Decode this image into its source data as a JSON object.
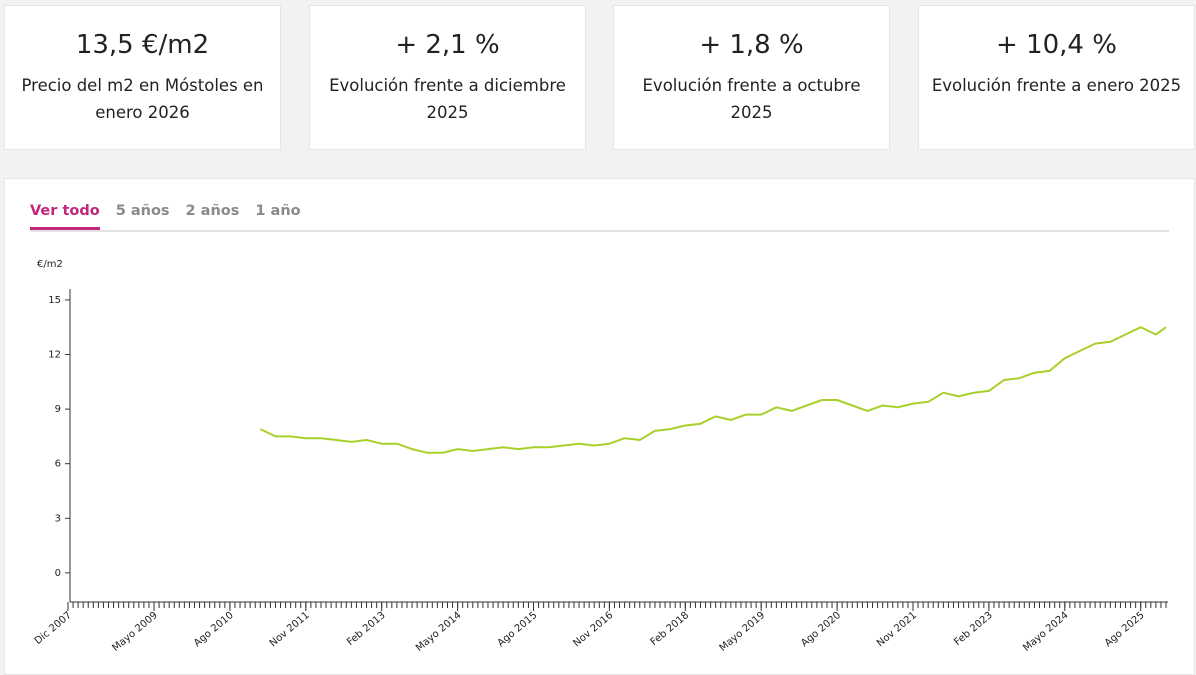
{
  "cards": [
    {
      "value": "13,5 €/m2",
      "label": "Precio del m2 en Móstoles en enero 2026"
    },
    {
      "value": "+ 2,1 %",
      "label": "Evolución frente a diciembre 2025"
    },
    {
      "value": "+ 1,8 %",
      "label": "Evolución frente a octubre 2025"
    },
    {
      "value": "+ 10,4 %",
      "label": "Evolución frente a enero 2025"
    }
  ],
  "tabs": [
    "Ver todo",
    "5 años",
    "2 años",
    "1 año"
  ],
  "chart_data": {
    "type": "line",
    "y_label": "€/m2",
    "color": "#a9cf2b",
    "x": [
      "2011-02",
      "2011-05",
      "2011-08",
      "2011-11",
      "2012-02",
      "2012-05",
      "2012-08",
      "2012-11",
      "2013-02",
      "2013-05",
      "2013-08",
      "2013-11",
      "2014-02",
      "2014-05",
      "2014-08",
      "2014-11",
      "2015-02",
      "2015-05",
      "2015-08",
      "2015-11",
      "2016-02",
      "2016-05",
      "2016-08",
      "2016-11",
      "2017-02",
      "2017-05",
      "2017-08",
      "2017-11",
      "2018-02",
      "2018-05",
      "2018-08",
      "2018-11",
      "2019-02",
      "2019-05",
      "2019-08",
      "2019-11",
      "2020-02",
      "2020-05",
      "2020-08",
      "2020-11",
      "2021-02",
      "2021-05",
      "2021-08",
      "2021-11",
      "2022-02",
      "2022-05",
      "2022-08",
      "2022-11",
      "2023-02",
      "2023-05",
      "2023-08",
      "2023-11",
      "2024-02",
      "2024-05",
      "2024-08",
      "2024-11",
      "2025-02",
      "2025-05",
      "2025-08",
      "2025-11",
      "2026-01"
    ],
    "values": [
      7.9,
      7.5,
      7.5,
      7.4,
      7.4,
      7.3,
      7.2,
      7.3,
      7.1,
      7.1,
      6.8,
      6.6,
      6.6,
      6.8,
      6.7,
      6.8,
      6.9,
      6.8,
      6.9,
      6.9,
      7.0,
      7.1,
      7.0,
      7.1,
      7.4,
      7.3,
      7.8,
      7.9,
      8.1,
      8.2,
      8.6,
      8.4,
      8.7,
      8.7,
      9.1,
      8.9,
      9.2,
      9.5,
      9.5,
      9.2,
      8.9,
      9.2,
      9.1,
      9.3,
      9.4,
      9.9,
      9.7,
      9.9,
      10.0,
      10.6,
      10.7,
      11.0,
      11.1,
      11.8,
      12.2,
      12.6,
      12.7,
      13.1,
      13.5,
      13.1,
      13.5
    ],
    "xlim": [
      "2007-12",
      "2026-01"
    ],
    "xticks": [
      {
        "value": "2007-12",
        "label": "Dic 2007"
      },
      {
        "value": "2009-05",
        "label": "Mayo 2009"
      },
      {
        "value": "2010-08",
        "label": "Ago 2010"
      },
      {
        "value": "2011-11",
        "label": "Nov 2011"
      },
      {
        "value": "2013-02",
        "label": "Feb 2013"
      },
      {
        "value": "2014-05",
        "label": "Mayo 2014"
      },
      {
        "value": "2015-08",
        "label": "Ago 2015"
      },
      {
        "value": "2016-11",
        "label": "Nov 2016"
      },
      {
        "value": "2018-02",
        "label": "Feb 2018"
      },
      {
        "value": "2019-05",
        "label": "Mayo 2019"
      },
      {
        "value": "2020-08",
        "label": "Ago 2020"
      },
      {
        "value": "2021-11",
        "label": "Nov 2021"
      },
      {
        "value": "2023-02",
        "label": "Feb 2023"
      },
      {
        "value": "2024-05",
        "label": "Mayo 2024"
      },
      {
        "value": "2025-08",
        "label": "Ago 2025"
      }
    ],
    "ylim": [
      -1.6,
      15.6
    ],
    "yticks": [
      0,
      3,
      6,
      9,
      12,
      15
    ]
  }
}
